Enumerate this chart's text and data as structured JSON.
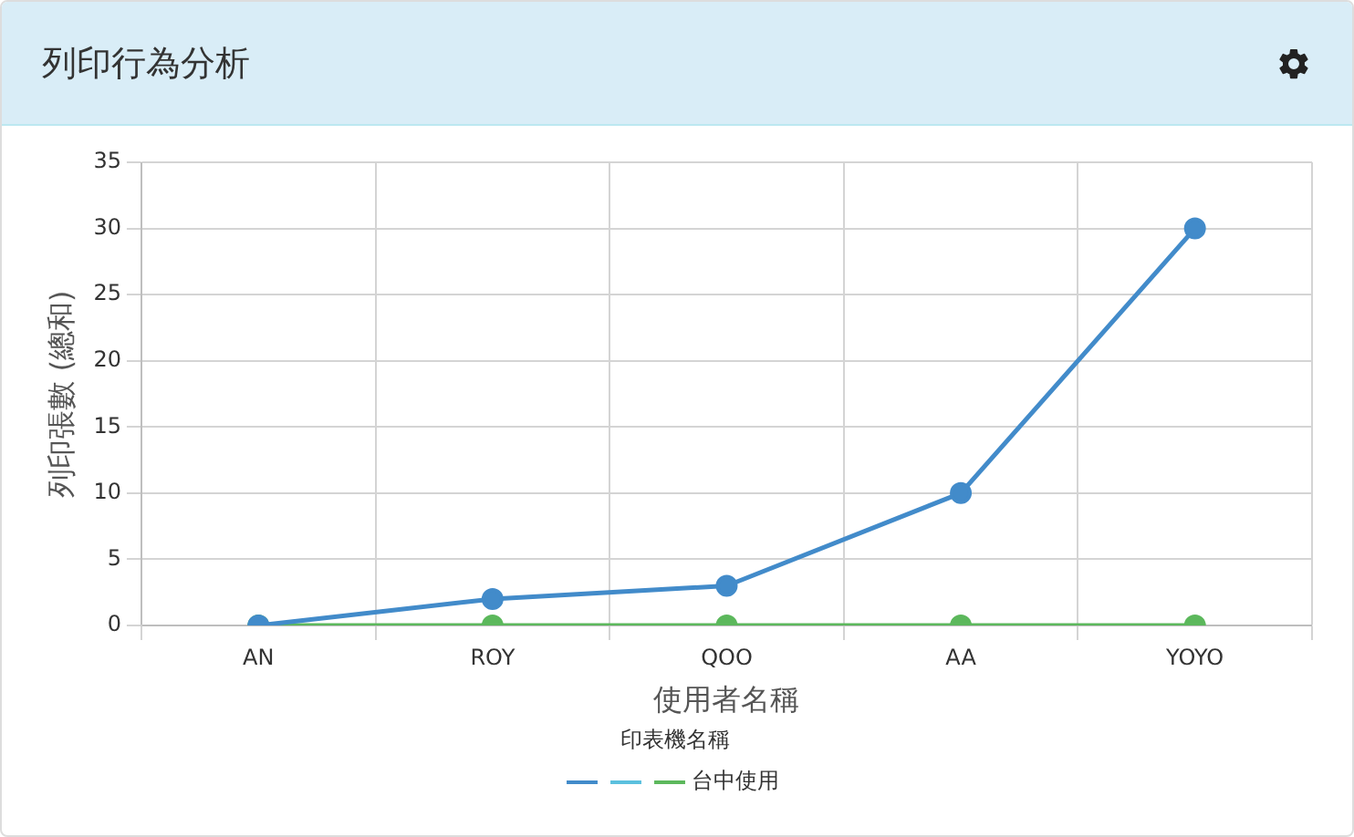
{
  "chart_data": {
    "type": "line",
    "title": "列印行為分析",
    "xlabel": "使用者名稱",
    "ylabel": "列印張數 (總和)",
    "legend_title": "印表機名稱",
    "categories": [
      "AN",
      "ROY",
      "QOO",
      "AA",
      "YOYO"
    ],
    "series": [
      {
        "color": "#428bca",
        "values": [
          0,
          2,
          3,
          10,
          30
        ]
      },
      {
        "color": "#5bc0de",
        "values": [
          null,
          null,
          null,
          null,
          null
        ]
      },
      {
        "name": "台中使用",
        "color": "#5cb85c",
        "values": [
          0,
          0,
          0,
          0,
          0
        ]
      }
    ],
    "ylim": [
      0,
      35
    ],
    "yticks": [
      0,
      5,
      10,
      15,
      20,
      25,
      30,
      35
    ],
    "grid": true,
    "legend": "bottom",
    "marker": "circle",
    "line_style": "solid"
  }
}
